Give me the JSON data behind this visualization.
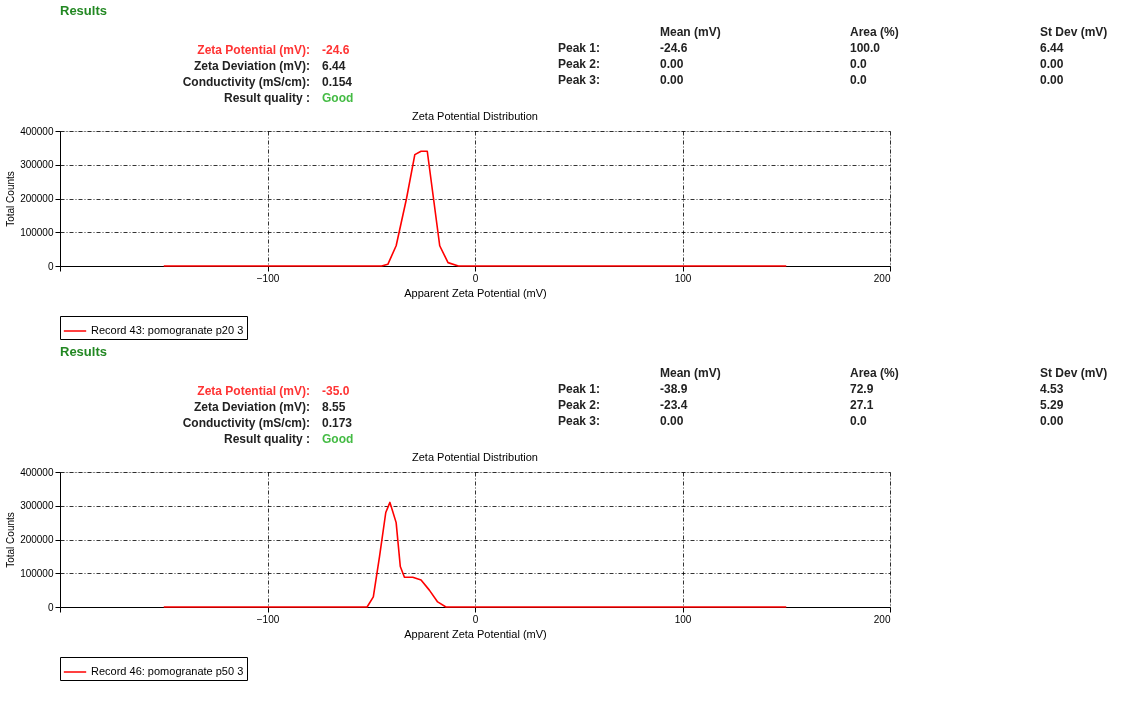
{
  "chart_data": [
    {
      "type": "other",
      "title": "Results",
      "annotations": [
        "Zeta Potential (mV):",
        "-24.6",
        "Zeta Deviation (mV):",
        "6.44",
        "Conductivity (mS/cm):",
        "0.154",
        "Result quality :",
        "Good",
        "Mean (mV)",
        "Area (%)",
        "St Dev (mV)",
        "Peak 1:",
        "-24.6",
        "100.0",
        "6.44",
        "Peak 2:",
        "0.00",
        "0.0",
        "0.00",
        "Peak 3:",
        "0.00",
        "0.0",
        "0.00"
      ]
    },
    {
      "type": "line",
      "title": "Zeta Potential Distribution",
      "xlabel": "Apparent Zeta Potential (mV)",
      "ylabel": "Total Counts",
      "xlim": [
        -200,
        200
      ],
      "xticks": [
        {
          "value": -200,
          "label": null
        },
        -100,
        0,
        100,
        200
      ],
      "ylim": [
        0,
        400000
      ],
      "yticks": [
        0,
        100000,
        200000,
        300000,
        400000
      ],
      "grid": true,
      "legend": "bottom",
      "marker": "none",
      "line_style": "solid",
      "series": [
        {
          "name": "Record 43: pomogranate p20 3",
          "color": "#ff0000",
          "x": [
            -150,
            -45,
            -42,
            -38,
            -33,
            -29,
            -26,
            -23,
            -20,
            -17,
            -13,
            -8,
            150
          ],
          "values": [
            0,
            0,
            5000,
            60000,
            200000,
            330000,
            340000,
            340000,
            200000,
            60000,
            10000,
            0,
            0
          ]
        }
      ]
    },
    {
      "type": "other",
      "title": "Results",
      "annotations": [
        "Zeta Potential (mV):",
        "-35.0",
        "Zeta Deviation (mV):",
        "8.55",
        "Conductivity (mS/cm):",
        "0.173",
        "Result quality :",
        "Good",
        "Mean (mV)",
        "Area (%)",
        "St Dev (mV)",
        "Peak 1:",
        "-38.9",
        "72.9",
        "4.53",
        "Peak 2:",
        "-23.4",
        "27.1",
        "5.29",
        "Peak 3:",
        "0.00",
        "0.0",
        "0.00"
      ]
    },
    {
      "type": "line",
      "title": "Zeta Potential Distribution",
      "xlabel": "Apparent Zeta Potential (mV)",
      "ylabel": "Total Counts",
      "xlim": [
        -200,
        200
      ],
      "xticks": [
        {
          "value": -200,
          "label": null
        },
        -100,
        0,
        100,
        200
      ],
      "ylim": [
        0,
        400000
      ],
      "yticks": [
        0,
        100000,
        200000,
        300000,
        400000
      ],
      "grid": true,
      "legend": "bottom",
      "marker": "none",
      "line_style": "solid",
      "series": [
        {
          "name": "Record 46: pomogranate p50 3",
          "color": "#ff0000",
          "x": [
            -150,
            -52,
            -49,
            -46,
            -43,
            -41,
            -38,
            -36,
            -34,
            -30,
            -26,
            -22,
            -18,
            -14,
            150
          ],
          "values": [
            0,
            0,
            30000,
            150000,
            280000,
            310000,
            250000,
            120000,
            88000,
            88000,
            80000,
            50000,
            15000,
            0,
            0
          ]
        }
      ]
    }
  ]
}
